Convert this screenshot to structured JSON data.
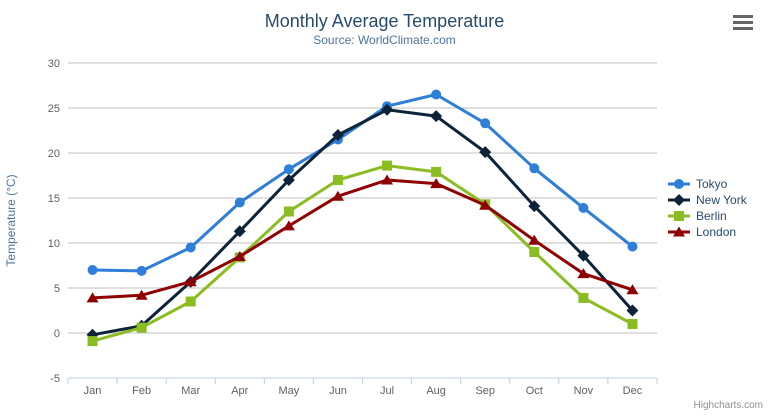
{
  "chart_data": {
    "type": "line",
    "title": "Monthly Average Temperature",
    "subtitle": "Source: WorldClimate.com",
    "categories": [
      "Jan",
      "Feb",
      "Mar",
      "Apr",
      "May",
      "Jun",
      "Jul",
      "Aug",
      "Sep",
      "Oct",
      "Nov",
      "Dec"
    ],
    "series": [
      {
        "name": "Tokyo",
        "color": "#2f7ed8",
        "marker": "circle",
        "values": [
          7.0,
          6.9,
          9.5,
          14.5,
          18.2,
          21.5,
          25.2,
          26.5,
          23.3,
          18.3,
          13.9,
          9.6
        ]
      },
      {
        "name": "New York",
        "color": "#0d233a",
        "marker": "diamond",
        "values": [
          -0.2,
          0.8,
          5.7,
          11.3,
          17.0,
          22.0,
          24.8,
          24.1,
          20.1,
          14.1,
          8.6,
          2.5
        ]
      },
      {
        "name": "Berlin",
        "color": "#8bbc21",
        "marker": "square",
        "values": [
          -0.9,
          0.6,
          3.5,
          8.4,
          13.5,
          17.0,
          18.6,
          17.9,
          14.3,
          9.0,
          3.9,
          1.0
        ]
      },
      {
        "name": "London",
        "color": "#910000",
        "marker": "triangle",
        "values": [
          3.9,
          4.2,
          5.7,
          8.5,
          11.9,
          15.2,
          17.0,
          16.6,
          14.2,
          10.3,
          6.6,
          4.8
        ]
      }
    ],
    "xlabel": "",
    "ylabel": "Temperature (°C)",
    "ylim": [
      -5,
      30
    ],
    "yticks": [
      -5,
      0,
      5,
      10,
      15,
      20,
      25,
      30
    ],
    "grid": true,
    "legend_position": "right"
  },
  "credits": "Highcharts.com",
  "export_menu": {
    "icon": "hamburger"
  },
  "colors": {
    "title": "#274b6d",
    "subtitle": "#4d759e",
    "axis_label": "#606060",
    "axis_title": "#4d759e",
    "gridline": "#c0c0c0",
    "axis_line": "#c0d0e0",
    "tick": "#c0d0e0",
    "legend_text": "#274b6d",
    "credits_text": "#909090",
    "export_icon": "#666666",
    "background": "#ffffff"
  }
}
